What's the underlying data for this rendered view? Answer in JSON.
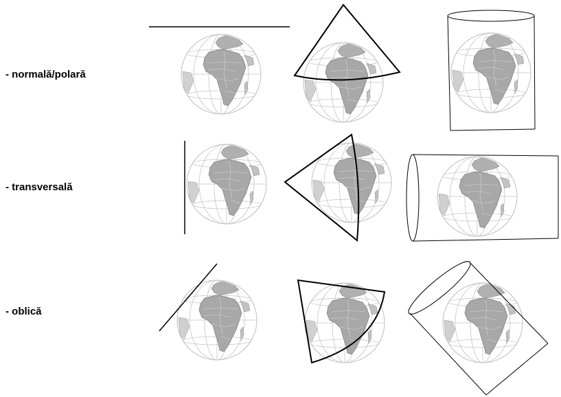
{
  "rows": [
    {
      "label": "- normală/polară",
      "aspect": "normal"
    },
    {
      "label": "- transversală",
      "aspect": "transverse"
    },
    {
      "label": "- oblică",
      "aspect": "oblique"
    }
  ],
  "columns": [
    {
      "surface": "plane"
    },
    {
      "surface": "cone"
    },
    {
      "surface": "cylinder"
    }
  ],
  "colors": {
    "ocean": "#ffffff",
    "land": "#a8a8a8",
    "land_light": "#d6d6d6",
    "graticule": "#c4c4c4",
    "outline": "#000000"
  }
}
